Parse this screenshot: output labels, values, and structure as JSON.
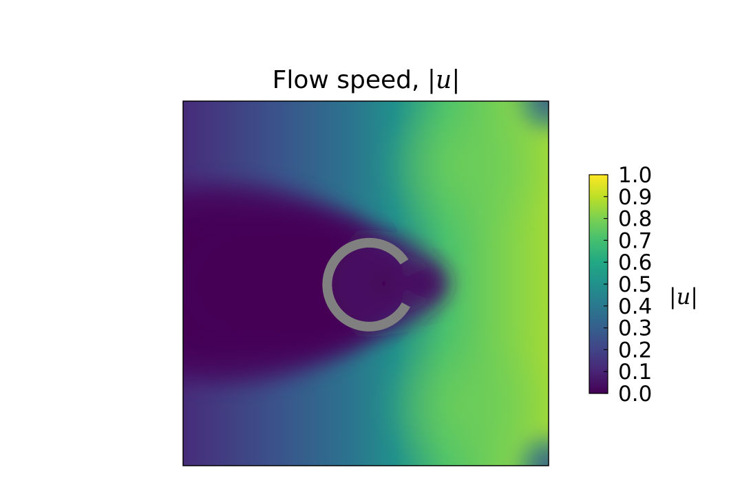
{
  "chart_data": {
    "type": "heatmap",
    "title_text": "Flow speed, ",
    "title_math": "|u|",
    "field_colors": {
      "left_region": "#440154",
      "near_obstacle": "#3b0f70",
      "mid_region": "#21918c",
      "right_bands": "#5ec962",
      "right_peak": "#fde725",
      "right_corners": "#3b0f70"
    },
    "obstacle": {
      "shape": "open-ring",
      "opening_side": "right",
      "color": "#808080"
    },
    "colorbar": {
      "label": "|u|",
      "colormap": "viridis",
      "range": [
        0.0,
        1.0
      ],
      "ticks": [
        0.0,
        0.1,
        0.2,
        0.3,
        0.4,
        0.5,
        0.6,
        0.7,
        0.8,
        0.9,
        1.0
      ],
      "tick_labels": [
        "0.0",
        "0.1",
        "0.2",
        "0.3",
        "0.4",
        "0.5",
        "0.6",
        "0.7",
        "0.8",
        "0.9",
        "1.0"
      ]
    }
  }
}
